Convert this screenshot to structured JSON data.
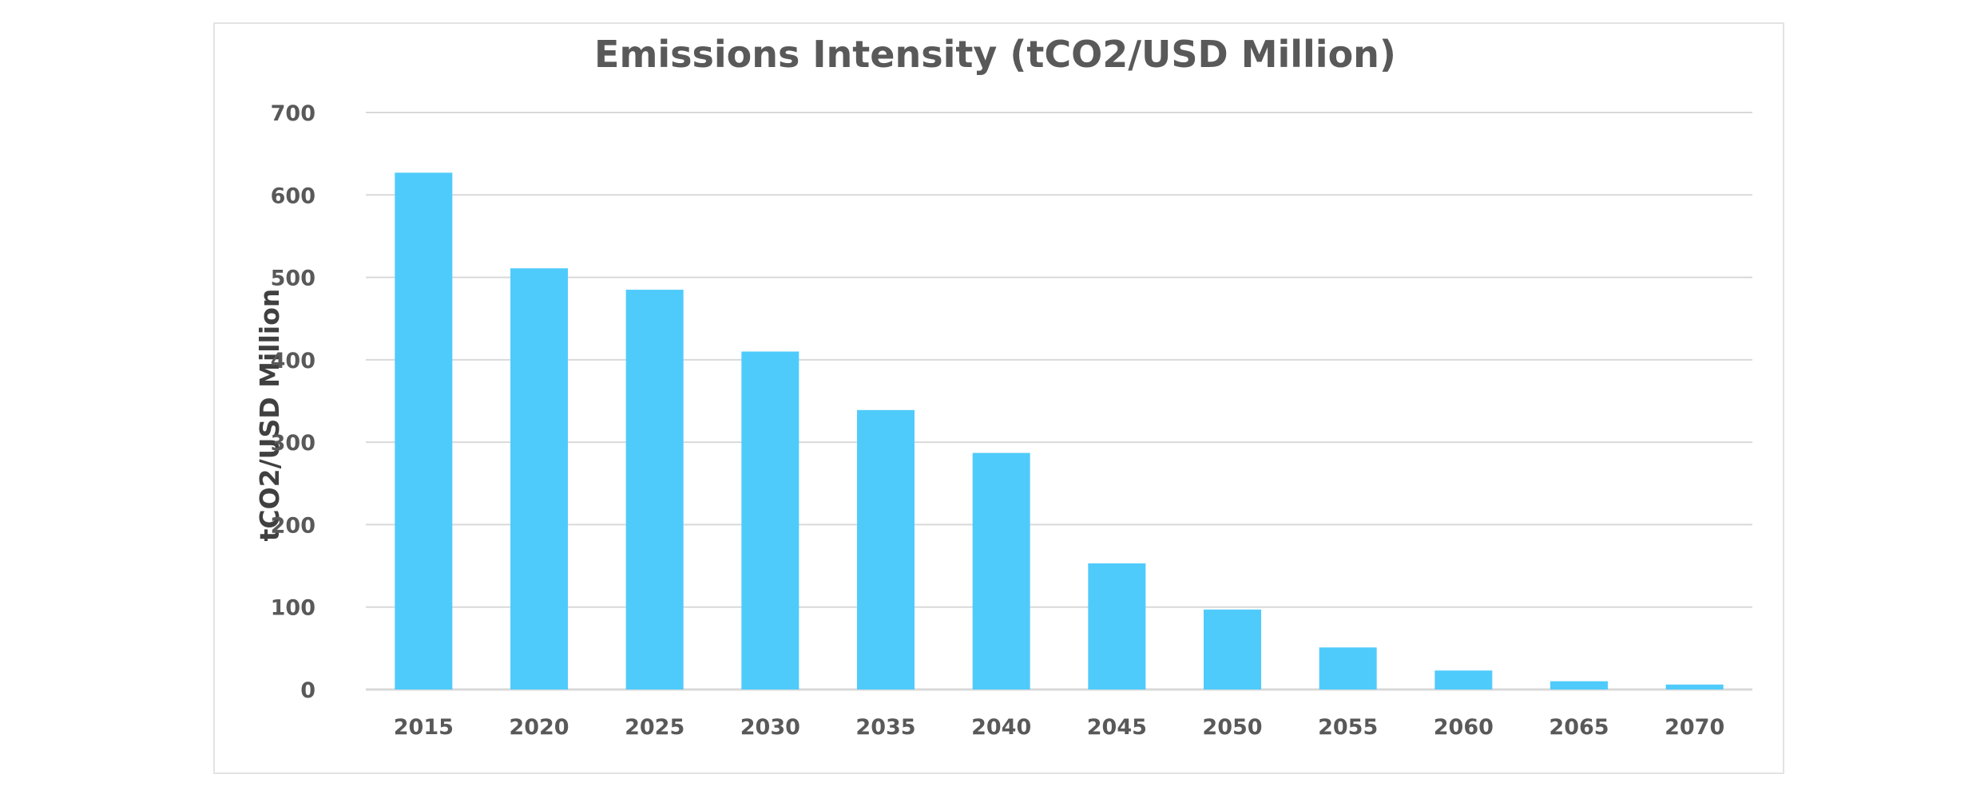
{
  "chart_data": {
    "type": "bar",
    "title": "Emissions Intensity (tCO2/USD Million)",
    "xlabel": "",
    "ylabel": "tCO2/USD Million",
    "categories": [
      "2015",
      "2020",
      "2025",
      "2030",
      "2035",
      "2040",
      "2045",
      "2050",
      "2055",
      "2060",
      "2065",
      "2070"
    ],
    "values": [
      627,
      511,
      485,
      410,
      339,
      287,
      153,
      97,
      51,
      23,
      10,
      6
    ],
    "ylim": [
      0,
      700
    ],
    "yticks": [
      0,
      100,
      200,
      300,
      400,
      500,
      600,
      700
    ],
    "grid": true,
    "legend": "none",
    "bar_color": "#4FCBFB"
  }
}
